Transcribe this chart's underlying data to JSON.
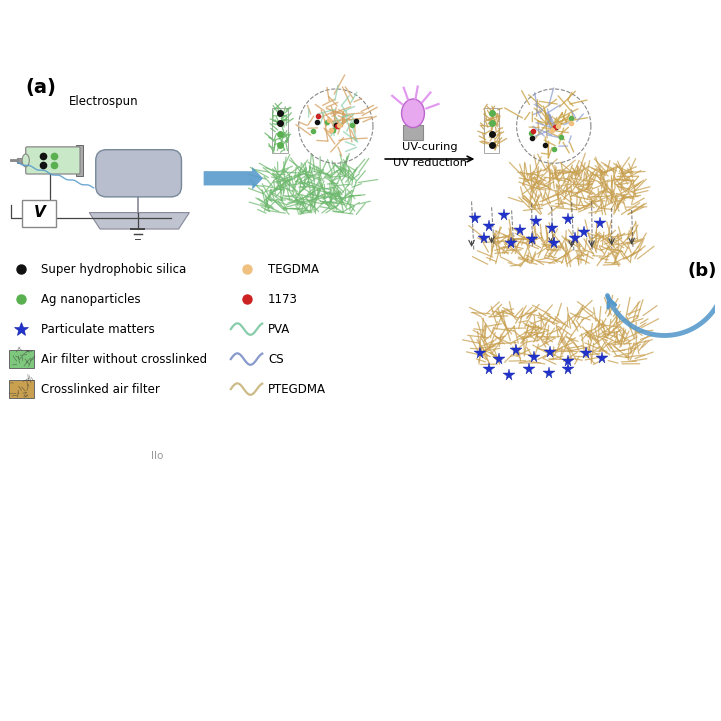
{
  "bg_color": "#ffffff",
  "label_a": "(a)",
  "label_b": "(b)",
  "electrospun_label": "Electrospun",
  "uv_curing_label": "UV-curing",
  "uv_reduction_label": "UV reduction",
  "legend_items_left": [
    {
      "marker": "circle",
      "color": "#111111",
      "label": "Super hydrophobic silica"
    },
    {
      "marker": "circle",
      "color": "#5ab050",
      "label": "Ag nanoparticles"
    },
    {
      "marker": "star",
      "color": "#2233cc",
      "label": "Particulate matters"
    },
    {
      "marker": "rect",
      "color": "#7ec87e",
      "label": "Air filter without crosslinked"
    },
    {
      "marker": "rect",
      "color": "#c8a050",
      "label": "Crosslinked air filter"
    }
  ],
  "legend_items_right": [
    {
      "marker": "circle",
      "color": "#f0c080",
      "label": "TEGDMA"
    },
    {
      "marker": "circle",
      "color": "#cc2222",
      "label": "1173"
    },
    {
      "marker": "wave",
      "color": "#88ccaa",
      "label": "PVA"
    },
    {
      "marker": "wave",
      "color": "#8899cc",
      "label": "CS"
    },
    {
      "marker": "wave",
      "color": "#ccbb88",
      "label": "PTEGDMA"
    }
  ],
  "green_fiber_color": "#6db86d",
  "tan_fiber_color": "#c8a050",
  "arrow_color": "#5599cc",
  "particle_color": "#2233cc",
  "footnote": "llo"
}
